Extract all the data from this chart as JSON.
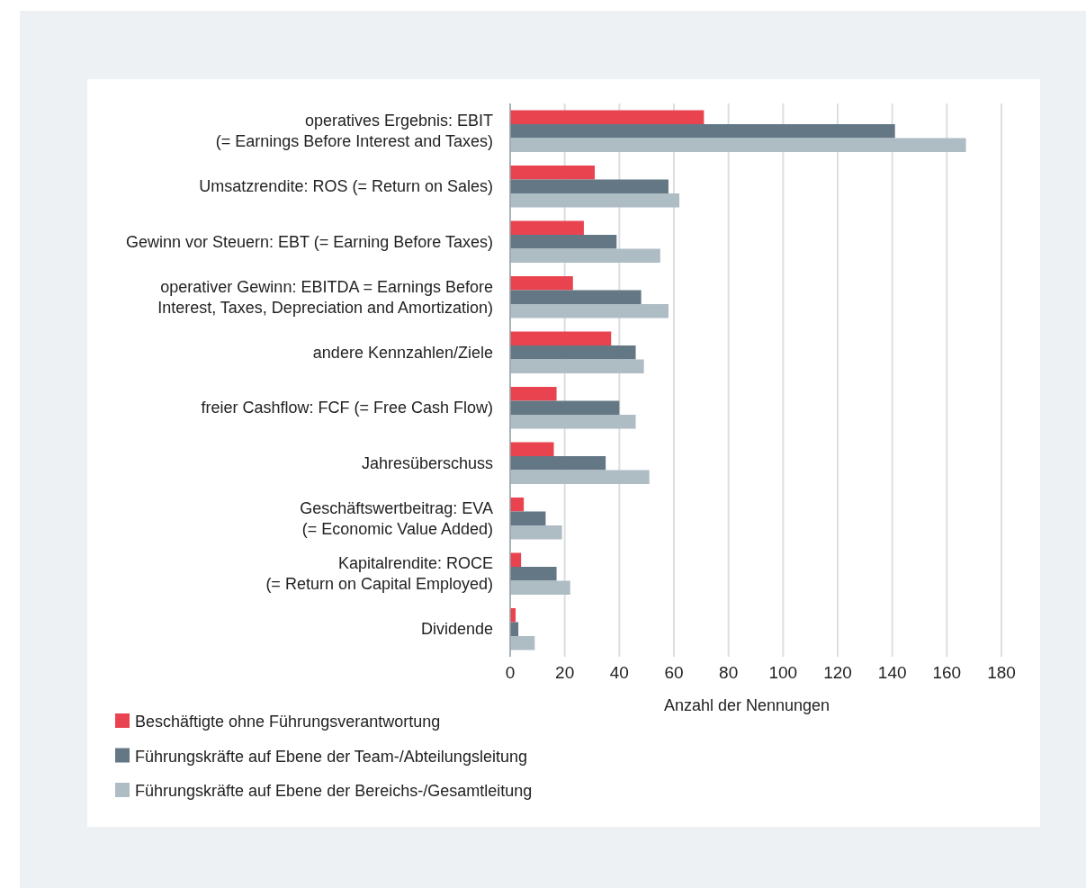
{
  "chart_data": {
    "type": "bar",
    "orientation": "horizontal",
    "xlabel": "Anzahl der Nennungen",
    "categories": [
      "operatives Ergebnis: EBIT\n(= Earnings Before Interest and Taxes)",
      "Umsatzrendite: ROS (= Return on Sales)",
      "Gewinn vor Steuern: EBT (= Earning Before Taxes)",
      "operativer Gewinn: EBITDA = Earnings Before\nInterest, Taxes, Depreciation and Amortization)",
      "andere Kennzahlen/Ziele",
      "freier Cashflow: FCF (= Free Cash Flow)",
      "Jahresüberschuss",
      "Geschäftswertbeitrag: EVA\n(= Economic Value Added)",
      "Kapitalrendite: ROCE\n(= Return on Capital Employed)",
      "Dividende"
    ],
    "series": [
      {
        "name": "Beschäftigte ohne Führungsverantwortung",
        "color": "#e8434f",
        "values": [
          71,
          31,
          27,
          23,
          37,
          17,
          16,
          5,
          4,
          2
        ]
      },
      {
        "name": "Führungskräfte auf Ebene der Team-/Abteilungsleitung",
        "color": "#637884",
        "values": [
          141,
          58,
          39,
          48,
          46,
          40,
          35,
          13,
          17,
          3
        ]
      },
      {
        "name": "Führungskräfte auf Ebene der Bereichs-/Gesamtleitung",
        "color": "#aebcc4",
        "values": [
          167,
          62,
          55,
          58,
          49,
          46,
          51,
          19,
          22,
          9
        ]
      }
    ],
    "xlim": [
      0,
      180
    ],
    "xticks": [
      0,
      20,
      40,
      60,
      80,
      100,
      120,
      140,
      160,
      180
    ],
    "grid": "x",
    "legend": "bottom"
  }
}
